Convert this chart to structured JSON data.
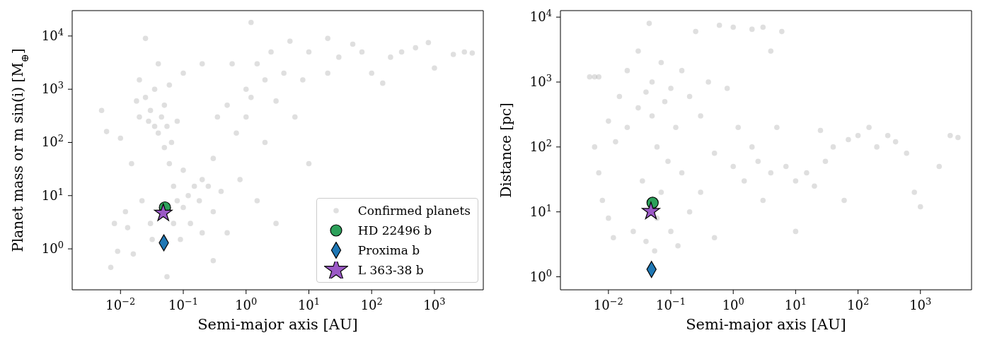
{
  "chart_data": [
    {
      "type": "scatter",
      "xlabel": "Semi-major axis [AU]",
      "ylabel": "Planet mass or m sin(i) [M$_{⊕}$]",
      "log": "xy",
      "legend": "bottom right",
      "xlim": [
        0.0017,
        6000
      ],
      "ylim": [
        0.17,
        30000
      ],
      "xticks": [
        {
          "value": 0.01,
          "label": "10$^{−2}$"
        },
        {
          "value": 0.1,
          "label": "10$^{−1}$"
        },
        {
          "value": 1,
          "label": "10$^{0}$"
        },
        {
          "value": 10,
          "label": "10$^{1}$"
        },
        {
          "value": 100,
          "label": "10$^{2}$"
        },
        {
          "value": 1000,
          "label": "10$^{3}$"
        }
      ],
      "yticks": [
        {
          "value": 1,
          "label": "10$^{0}$"
        },
        {
          "value": 10,
          "label": "10$^{1}$"
        },
        {
          "value": 100,
          "label": "10$^{2}$"
        },
        {
          "value": 1000,
          "label": "10$^{3}$"
        },
        {
          "value": 10000,
          "label": "10$^{4}$"
        }
      ],
      "series": [
        {
          "name": "Confirmed planets",
          "color": "#808080",
          "marker": "circle",
          "x": [
            0.005,
            0.006,
            0.007,
            0.008,
            0.009,
            0.01,
            0.012,
            0.013,
            0.015,
            0.016,
            0.018,
            0.02,
            0.02,
            0.022,
            0.025,
            0.025,
            0.028,
            0.03,
            0.03,
            0.032,
            0.035,
            0.035,
            0.04,
            0.04,
            0.045,
            0.05,
            0.05,
            0.055,
            0.06,
            0.06,
            0.065,
            0.07,
            0.07,
            0.08,
            0.08,
            0.09,
            0.1,
            0.1,
            0.1,
            0.12,
            0.13,
            0.15,
            0.18,
            0.2,
            0.2,
            0.25,
            0.3,
            0.3,
            0.35,
            0.4,
            0.5,
            0.5,
            0.6,
            0.7,
            0.8,
            1,
            1,
            1.2,
            1.2,
            1.5,
            1.5,
            2,
            2,
            2.5,
            3,
            3,
            4,
            5,
            6,
            8,
            10,
            10,
            20,
            20,
            30,
            50,
            70,
            100,
            150,
            200,
            300,
            500,
            800,
            1000,
            2000,
            3000,
            4000,
            0.055,
            0.3,
            0.2
          ],
          "values": [
            400,
            160,
            0.45,
            3,
            0.9,
            120,
            5,
            2.5,
            40,
            0.8,
            600,
            300,
            1500,
            8,
            9000,
            700,
            250,
            400,
            3,
            1.5,
            200,
            1000,
            3000,
            150,
            300,
            500,
            80,
            200,
            40,
            1200,
            100,
            15,
            3,
            250,
            8,
            1.5,
            6,
            30,
            2000,
            10,
            3,
            15,
            8,
            20,
            3000,
            15,
            5,
            50,
            300,
            12,
            2,
            500,
            3000,
            150,
            20,
            1000,
            300,
            700,
            18000,
            3000,
            8,
            1500,
            100,
            5000,
            600,
            3,
            2000,
            8000,
            300,
            1500,
            5000,
            40,
            9000,
            2000,
            4000,
            7000,
            5000,
            2000,
            1300,
            4000,
            5000,
            6000,
            7500,
            2500,
            4500,
            5000,
            4800,
            0.3,
            0.6,
            2
          ]
        },
        {
          "name": "HD 22496 b",
          "color": "#2ca05a",
          "marker": "circle",
          "x": [
            0.051
          ],
          "values": [
            6
          ]
        },
        {
          "name": "Proxima b",
          "color": "#1f77b4",
          "marker": "diamond",
          "x": [
            0.049
          ],
          "values": [
            1.3
          ]
        },
        {
          "name": "L 363-38 b",
          "color": "#9b59c6",
          "marker": "star",
          "x": [
            0.048
          ],
          "values": [
            4.7
          ]
        }
      ]
    },
    {
      "type": "scatter",
      "xlabel": "Semi-major axis [AU]",
      "ylabel": "Distance [pc]",
      "log": "xy",
      "xlim": [
        0.0017,
        6600
      ],
      "ylim": [
        0.63,
        12600
      ],
      "xticks": [
        {
          "value": 0.01,
          "label": "10$^{−2}$"
        },
        {
          "value": 0.1,
          "label": "10$^{−1}$"
        },
        {
          "value": 1,
          "label": "10$^{0}$"
        },
        {
          "value": 10,
          "label": "10$^{1}$"
        },
        {
          "value": 100,
          "label": "10$^{2}$"
        },
        {
          "value": 1000,
          "label": "10$^{3}$"
        }
      ],
      "yticks": [
        {
          "value": 1,
          "label": "10$^{0}$"
        },
        {
          "value": 10,
          "label": "10$^{1}$"
        },
        {
          "value": 100,
          "label": "10$^{2}$"
        },
        {
          "value": 1000,
          "label": "10$^{3}$"
        },
        {
          "value": 10000,
          "label": "10$^{4}$"
        }
      ],
      "series": [
        {
          "color": "#808080",
          "marker": "circle",
          "x": [
            0.005,
            0.006,
            0.007,
            0.006,
            0.007,
            0.008,
            0.01,
            0.01,
            0.012,
            0.013,
            0.015,
            0.02,
            0.02,
            0.025,
            0.03,
            0.03,
            0.035,
            0.04,
            0.04,
            0.045,
            0.05,
            0.05,
            0.06,
            0.06,
            0.07,
            0.07,
            0.08,
            0.09,
            0.1,
            0.1,
            0.12,
            0.13,
            0.15,
            0.15,
            0.2,
            0.2,
            0.25,
            0.3,
            0.3,
            0.4,
            0.5,
            0.5,
            0.6,
            0.8,
            1,
            1,
            1.2,
            1.5,
            2,
            2,
            2.5,
            3,
            3,
            4,
            4,
            5,
            6,
            7,
            10,
            10,
            15,
            20,
            30,
            40,
            60,
            100,
            150,
            200,
            300,
            400,
            600,
            800,
            1000,
            2000,
            3000,
            4000,
            25,
            70,
            0.055
          ],
          "values": [
            1200,
            1200,
            1200,
            100,
            40,
            15,
            250,
            8,
            4,
            120,
            600,
            200,
            1500,
            5,
            3000,
            400,
            30,
            700,
            3.5,
            8000,
            300,
            1000,
            100,
            8,
            2000,
            20,
            500,
            60,
            800,
            5,
            200,
            3,
            1500,
            40,
            600,
            10,
            6000,
            300,
            20,
            1000,
            80,
            4,
            7500,
            800,
            50,
            7000,
            200,
            30,
            6500,
            100,
            60,
            7000,
            15,
            40,
            3000,
            200,
            6000,
            50,
            5,
            30,
            40,
            25,
            60,
            100,
            15,
            150,
            200,
            100,
            150,
            120,
            80,
            20,
            12,
            50,
            150,
            140,
            180,
            130,
            2.5
          ]
        },
        {
          "color": "#2ca05a",
          "marker": "circle",
          "x": [
            0.051
          ],
          "values": [
            13.8
          ]
        },
        {
          "color": "#1f77b4",
          "marker": "diamond",
          "x": [
            0.049
          ],
          "values": [
            1.3
          ]
        },
        {
          "color": "#9b59c6",
          "marker": "star",
          "x": [
            0.048
          ],
          "values": [
            10.2
          ]
        }
      ]
    }
  ]
}
